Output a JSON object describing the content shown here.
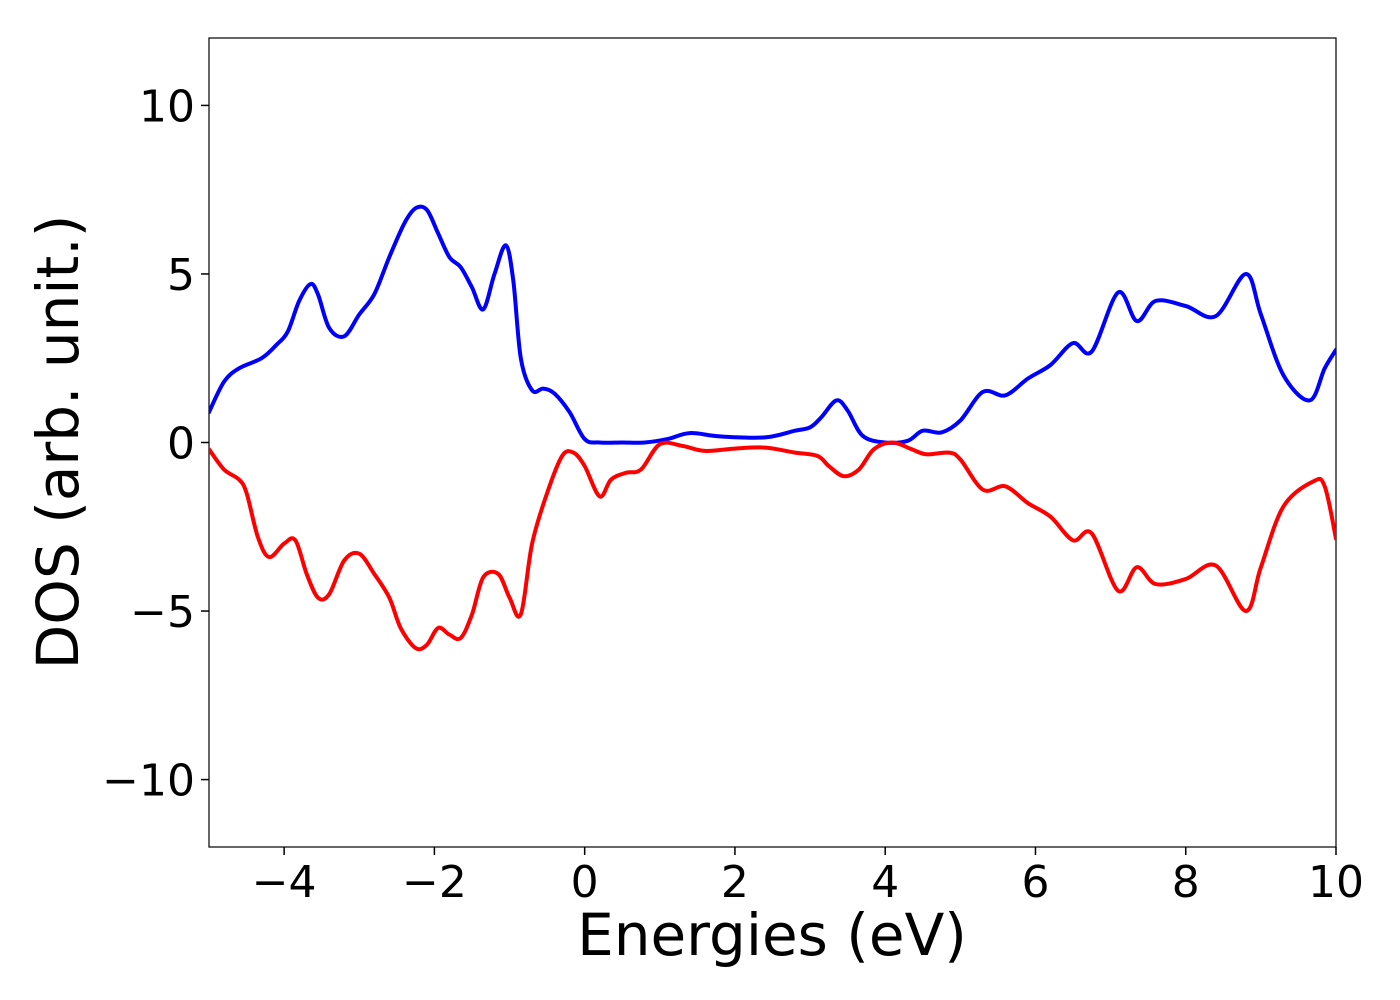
{
  "chart_data": {
    "type": "line",
    "title": "",
    "xlabel": "Energies (eV)",
    "ylabel": "DOS (arb. unit.)",
    "xlim": [
      -5,
      10
    ],
    "ylim": [
      -12,
      12
    ],
    "xticks": [
      -4,
      -2,
      0,
      2,
      4,
      6,
      8,
      10
    ],
    "xtick_labels": [
      "−4",
      "−2",
      "0",
      "2",
      "4",
      "6",
      "8",
      "10"
    ],
    "yticks": [
      -10,
      -5,
      0,
      5,
      10
    ],
    "ytick_labels": [
      "−10",
      "−5",
      "0",
      "5",
      "10"
    ],
    "grid": false,
    "legend": "none",
    "series": [
      {
        "color": "#0000ff",
        "x": [
          -5.0,
          -4.8,
          -4.6,
          -4.3,
          -4.1,
          -3.95,
          -3.8,
          -3.65,
          -3.55,
          -3.4,
          -3.2,
          -3.0,
          -2.8,
          -2.6,
          -2.4,
          -2.25,
          -2.1,
          -1.95,
          -1.8,
          -1.65,
          -1.5,
          -1.35,
          -1.2,
          -1.05,
          -0.95,
          -0.85,
          -0.7,
          -0.55,
          -0.4,
          -0.2,
          0.0,
          0.2,
          0.5,
          0.8,
          1.1,
          1.4,
          1.8,
          2.4,
          2.8,
          3.0,
          3.15,
          3.35,
          3.5,
          3.7,
          4.0,
          4.3,
          4.5,
          4.75,
          5.0,
          5.3,
          5.6,
          5.9,
          6.2,
          6.5,
          6.75,
          7.1,
          7.35,
          7.6,
          8.0,
          8.4,
          8.8,
          9.0,
          9.3,
          9.65,
          9.85,
          10.0
        ],
        "y": [
          0.9,
          1.8,
          2.2,
          2.5,
          2.9,
          3.3,
          4.2,
          4.7,
          4.4,
          3.4,
          3.15,
          3.8,
          4.4,
          5.5,
          6.5,
          6.95,
          6.9,
          6.2,
          5.5,
          5.2,
          4.6,
          3.95,
          5.0,
          5.85,
          4.8,
          2.5,
          1.55,
          1.6,
          1.45,
          0.9,
          0.1,
          0.0,
          0.0,
          0.0,
          0.1,
          0.28,
          0.18,
          0.15,
          0.35,
          0.45,
          0.75,
          1.25,
          0.95,
          0.2,
          0.0,
          0.05,
          0.35,
          0.3,
          0.65,
          1.5,
          1.4,
          1.9,
          2.3,
          2.95,
          2.7,
          4.45,
          3.6,
          4.2,
          4.05,
          3.75,
          5.0,
          3.8,
          2.0,
          1.25,
          2.2,
          2.75
        ]
      },
      {
        "color": "#ff0000",
        "x": [
          -5.0,
          -4.8,
          -4.6,
          -4.5,
          -4.35,
          -4.2,
          -4.0,
          -3.85,
          -3.7,
          -3.55,
          -3.4,
          -3.2,
          -3.0,
          -2.8,
          -2.6,
          -2.45,
          -2.25,
          -2.1,
          -1.95,
          -1.8,
          -1.65,
          -1.5,
          -1.35,
          -1.15,
          -1.0,
          -0.85,
          -0.7,
          -0.5,
          -0.3,
          -0.15,
          0.0,
          0.2,
          0.35,
          0.55,
          0.75,
          1.0,
          1.3,
          1.6,
          2.0,
          2.4,
          2.8,
          3.1,
          3.25,
          3.45,
          3.65,
          3.85,
          4.1,
          4.35,
          4.55,
          4.85,
          5.0,
          5.3,
          5.6,
          5.9,
          6.2,
          6.5,
          6.75,
          7.1,
          7.35,
          7.6,
          8.0,
          8.4,
          8.8,
          9.0,
          9.3,
          9.7,
          9.85,
          10.0
        ],
        "y": [
          -0.2,
          -0.8,
          -1.1,
          -1.5,
          -2.8,
          -3.4,
          -3.0,
          -2.9,
          -3.9,
          -4.6,
          -4.5,
          -3.5,
          -3.3,
          -3.9,
          -4.6,
          -5.5,
          -6.1,
          -6.0,
          -5.5,
          -5.7,
          -5.8,
          -5.1,
          -4.0,
          -3.9,
          -4.6,
          -5.1,
          -3.0,
          -1.5,
          -0.4,
          -0.3,
          -0.7,
          -1.6,
          -1.1,
          -0.9,
          -0.8,
          -0.05,
          -0.1,
          -0.25,
          -0.18,
          -0.15,
          -0.3,
          -0.4,
          -0.7,
          -1.0,
          -0.8,
          -0.2,
          0.0,
          -0.2,
          -0.35,
          -0.3,
          -0.5,
          -1.4,
          -1.3,
          -1.8,
          -2.2,
          -2.9,
          -2.7,
          -4.4,
          -3.7,
          -4.2,
          -4.05,
          -3.65,
          -5.0,
          -3.7,
          -1.9,
          -1.15,
          -1.3,
          -2.85
        ]
      }
    ]
  }
}
